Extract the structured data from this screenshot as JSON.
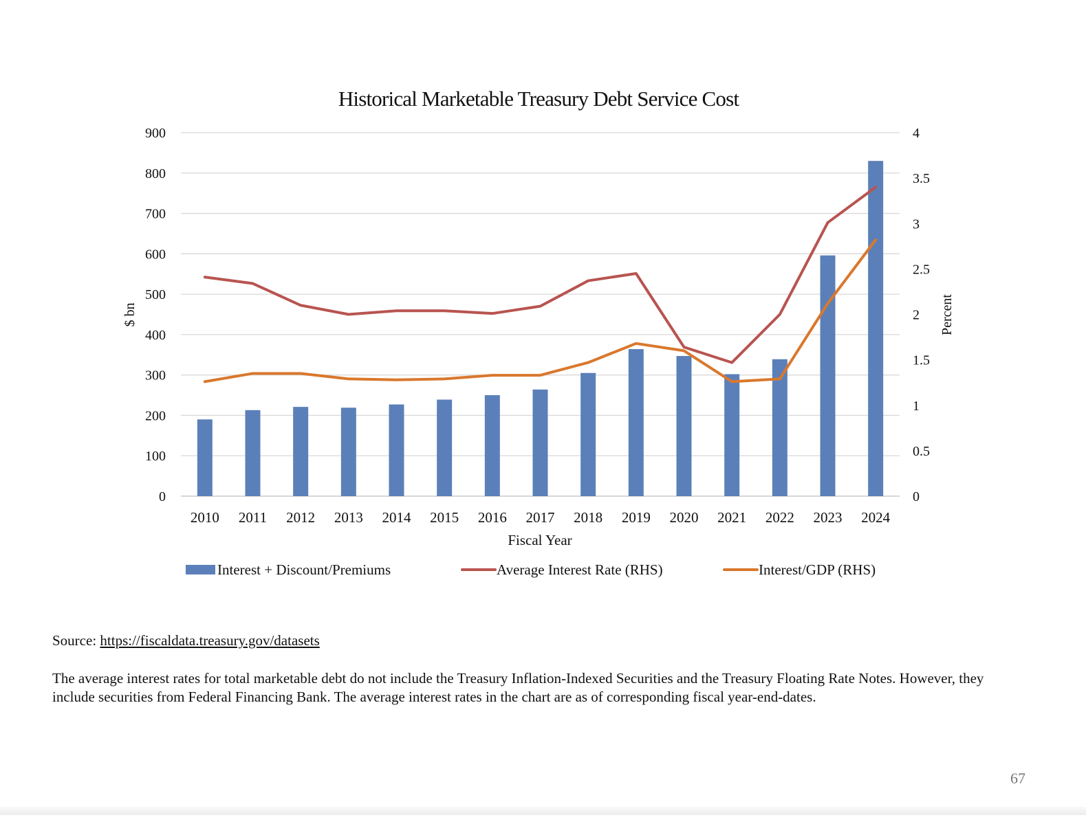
{
  "chart_data": {
    "type": "bar",
    "title": "Historical Marketable Treasury Debt Service Cost",
    "xlabel": "Fiscal Year",
    "ylabel": "$ bn",
    "y2label": "Percent",
    "categories": [
      "2010",
      "2011",
      "2012",
      "2013",
      "2014",
      "2015",
      "2016",
      "2017",
      "2018",
      "2019",
      "2020",
      "2021",
      "2022",
      "2023",
      "2024"
    ],
    "ylim": [
      0,
      900
    ],
    "y2lim": [
      0,
      4
    ],
    "yticks": [
      "0",
      "100",
      "200",
      "300",
      "400",
      "500",
      "600",
      "700",
      "800",
      "900"
    ],
    "y2ticks": [
      "0",
      "0.5",
      "1",
      "1.5",
      "2",
      "2.5",
      "3",
      "3.5",
      "4"
    ],
    "grid": true,
    "legend_position": "bottom",
    "series": [
      {
        "name": "Interest + Discount/Premiums",
        "type": "bar",
        "axis": "left",
        "color": "#5b80b9",
        "values": [
          190,
          213,
          221,
          219,
          227,
          239,
          250,
          264,
          305,
          364,
          347,
          302,
          339,
          596,
          830
        ]
      },
      {
        "name": "Average Interest Rate (RHS)",
        "type": "line",
        "axis": "right",
        "color": "#b85450",
        "values": [
          2.41,
          2.34,
          2.1,
          2.0,
          2.04,
          2.04,
          2.01,
          2.09,
          2.37,
          2.45,
          1.64,
          1.47,
          2.0,
          3.01,
          3.4
        ]
      },
      {
        "name": "Interest/GDP (RHS)",
        "type": "line",
        "axis": "right",
        "color": "#d9782d",
        "values": [
          1.26,
          1.35,
          1.35,
          1.29,
          1.28,
          1.29,
          1.33,
          1.33,
          1.47,
          1.68,
          1.6,
          1.26,
          1.29,
          2.12,
          2.82
        ]
      }
    ]
  },
  "source_label": "Source:",
  "source_link": "https://fiscaldata.treasury.gov/datasets",
  "footnote": "The average interest rates for total marketable debt do not include the Treasury Inflation-Indexed Securities and the Treasury Floating Rate Notes. However, they include securities from Federal Financing Bank. The average interest rates in the chart are as of corresponding fiscal year-end-dates.",
  "page_number": "67"
}
